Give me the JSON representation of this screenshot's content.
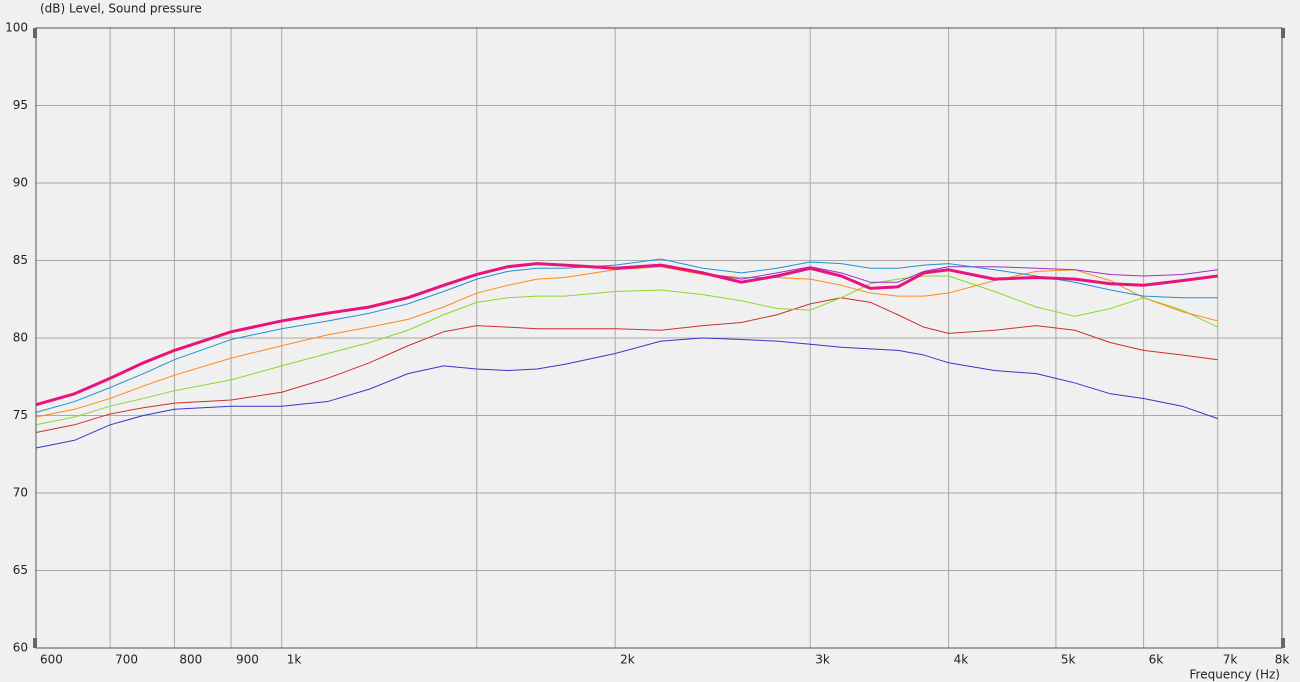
{
  "chart_data": {
    "type": "line",
    "y_label": "(dB)  Level, Sound pressure",
    "x_label": "Frequency  (Hz)",
    "log_x": true,
    "grid": true,
    "xlim": [
      600,
      8000
    ],
    "ylim": [
      60,
      100
    ],
    "xticks": [
      600,
      700,
      800,
      900,
      {
        "value": 1000,
        "label": "1k"
      },
      {
        "value": 1500,
        "label": null
      },
      {
        "value": 2000,
        "label": "2k"
      },
      {
        "value": 3000,
        "label": "3k"
      },
      {
        "value": 4000,
        "label": "4k"
      },
      {
        "value": 5000,
        "label": "5k"
      },
      {
        "value": 6000,
        "label": "6k"
      },
      {
        "value": 7000,
        "label": "7k"
      },
      {
        "value": 8000,
        "label": "8k"
      }
    ],
    "yticks": [
      60,
      65,
      70,
      75,
      80,
      85,
      90,
      95,
      100
    ],
    "x": [
      600,
      650,
      700,
      750,
      800,
      900,
      1000,
      1100,
      1200,
      1300,
      1400,
      1500,
      1600,
      1700,
      1800,
      2000,
      2200,
      2400,
      2600,
      2800,
      3000,
      3200,
      3400,
      3600,
      3800,
      4000,
      4400,
      4800,
      5200,
      5600,
      6000,
      6500,
      7000
    ],
    "series": [
      {
        "color": "#3838c8",
        "line_width": 1,
        "values": [
          72.9,
          73.4,
          74.4,
          75.0,
          75.4,
          75.6,
          75.6,
          75.9,
          76.7,
          77.7,
          78.2,
          78.0,
          77.9,
          78.0,
          78.3,
          79.0,
          79.8,
          80.0,
          79.9,
          79.8,
          79.6,
          79.4,
          79.3,
          79.2,
          78.9,
          78.4,
          77.9,
          77.7,
          77.1,
          76.4,
          76.1,
          75.6,
          74.8
        ]
      },
      {
        "color": "#cc3030",
        "line_width": 1,
        "values": [
          73.9,
          74.4,
          75.1,
          75.5,
          75.8,
          76.0,
          76.5,
          77.4,
          78.4,
          79.5,
          80.4,
          80.8,
          80.7,
          80.6,
          80.6,
          80.6,
          80.5,
          80.8,
          81.0,
          81.5,
          82.2,
          82.6,
          82.3,
          81.5,
          80.7,
          80.3,
          80.5,
          80.8,
          80.5,
          79.7,
          79.2,
          78.9,
          78.6
        ]
      },
      {
        "color": "#8cd82a",
        "line_width": 1,
        "values": [
          74.4,
          74.9,
          75.6,
          76.1,
          76.6,
          77.3,
          78.2,
          79.0,
          79.7,
          80.5,
          81.5,
          82.3,
          82.6,
          82.7,
          82.7,
          83.0,
          83.1,
          82.8,
          82.4,
          81.9,
          81.8,
          82.6,
          83.5,
          83.8,
          84.0,
          84.0,
          83.0,
          82.0,
          81.4,
          81.9,
          82.6,
          81.8,
          80.7
        ]
      },
      {
        "color": "#ff8a1a",
        "line_width": 1,
        "values": [
          74.9,
          75.4,
          76.1,
          76.9,
          77.6,
          78.7,
          79.5,
          80.2,
          80.7,
          81.2,
          82.0,
          82.9,
          83.4,
          83.8,
          83.9,
          84.4,
          84.6,
          84.1,
          83.9,
          83.9,
          83.8,
          83.4,
          82.9,
          82.7,
          82.7,
          82.9,
          83.7,
          84.3,
          84.4,
          83.7,
          82.6,
          81.7,
          81.1
        ]
      },
      {
        "color": "#9a30c8",
        "line_width": 1,
        "values": [
          75.7,
          76.4,
          77.4,
          78.4,
          79.2,
          80.4,
          81.1,
          81.6,
          82.0,
          82.6,
          83.4,
          84.1,
          84.6,
          84.8,
          84.7,
          84.5,
          84.7,
          84.2,
          83.8,
          84.2,
          84.6,
          84.2,
          83.6,
          83.6,
          84.3,
          84.6,
          84.6,
          84.5,
          84.4,
          84.1,
          84.0,
          84.1,
          84.4
        ]
      },
      {
        "color": "#2090d8",
        "line_width": 1,
        "values": [
          75.2,
          75.9,
          76.8,
          77.7,
          78.6,
          79.9,
          80.6,
          81.1,
          81.6,
          82.2,
          83.0,
          83.8,
          84.3,
          84.5,
          84.5,
          84.7,
          85.1,
          84.5,
          84.2,
          84.5,
          84.9,
          84.8,
          84.5,
          84.5,
          84.7,
          84.8,
          84.4,
          84.0,
          83.6,
          83.1,
          82.7,
          82.6,
          82.6
        ]
      },
      {
        "color": "#e8147e",
        "line_width": 3,
        "values": [
          75.7,
          76.4,
          77.4,
          78.4,
          79.2,
          80.4,
          81.1,
          81.6,
          82.0,
          82.6,
          83.4,
          84.1,
          84.6,
          84.8,
          84.7,
          84.5,
          84.7,
          84.2,
          83.6,
          84.0,
          84.5,
          84.0,
          83.2,
          83.3,
          84.2,
          84.4,
          83.8,
          83.9,
          83.8,
          83.5,
          83.4,
          83.7,
          84.0
        ]
      }
    ]
  }
}
